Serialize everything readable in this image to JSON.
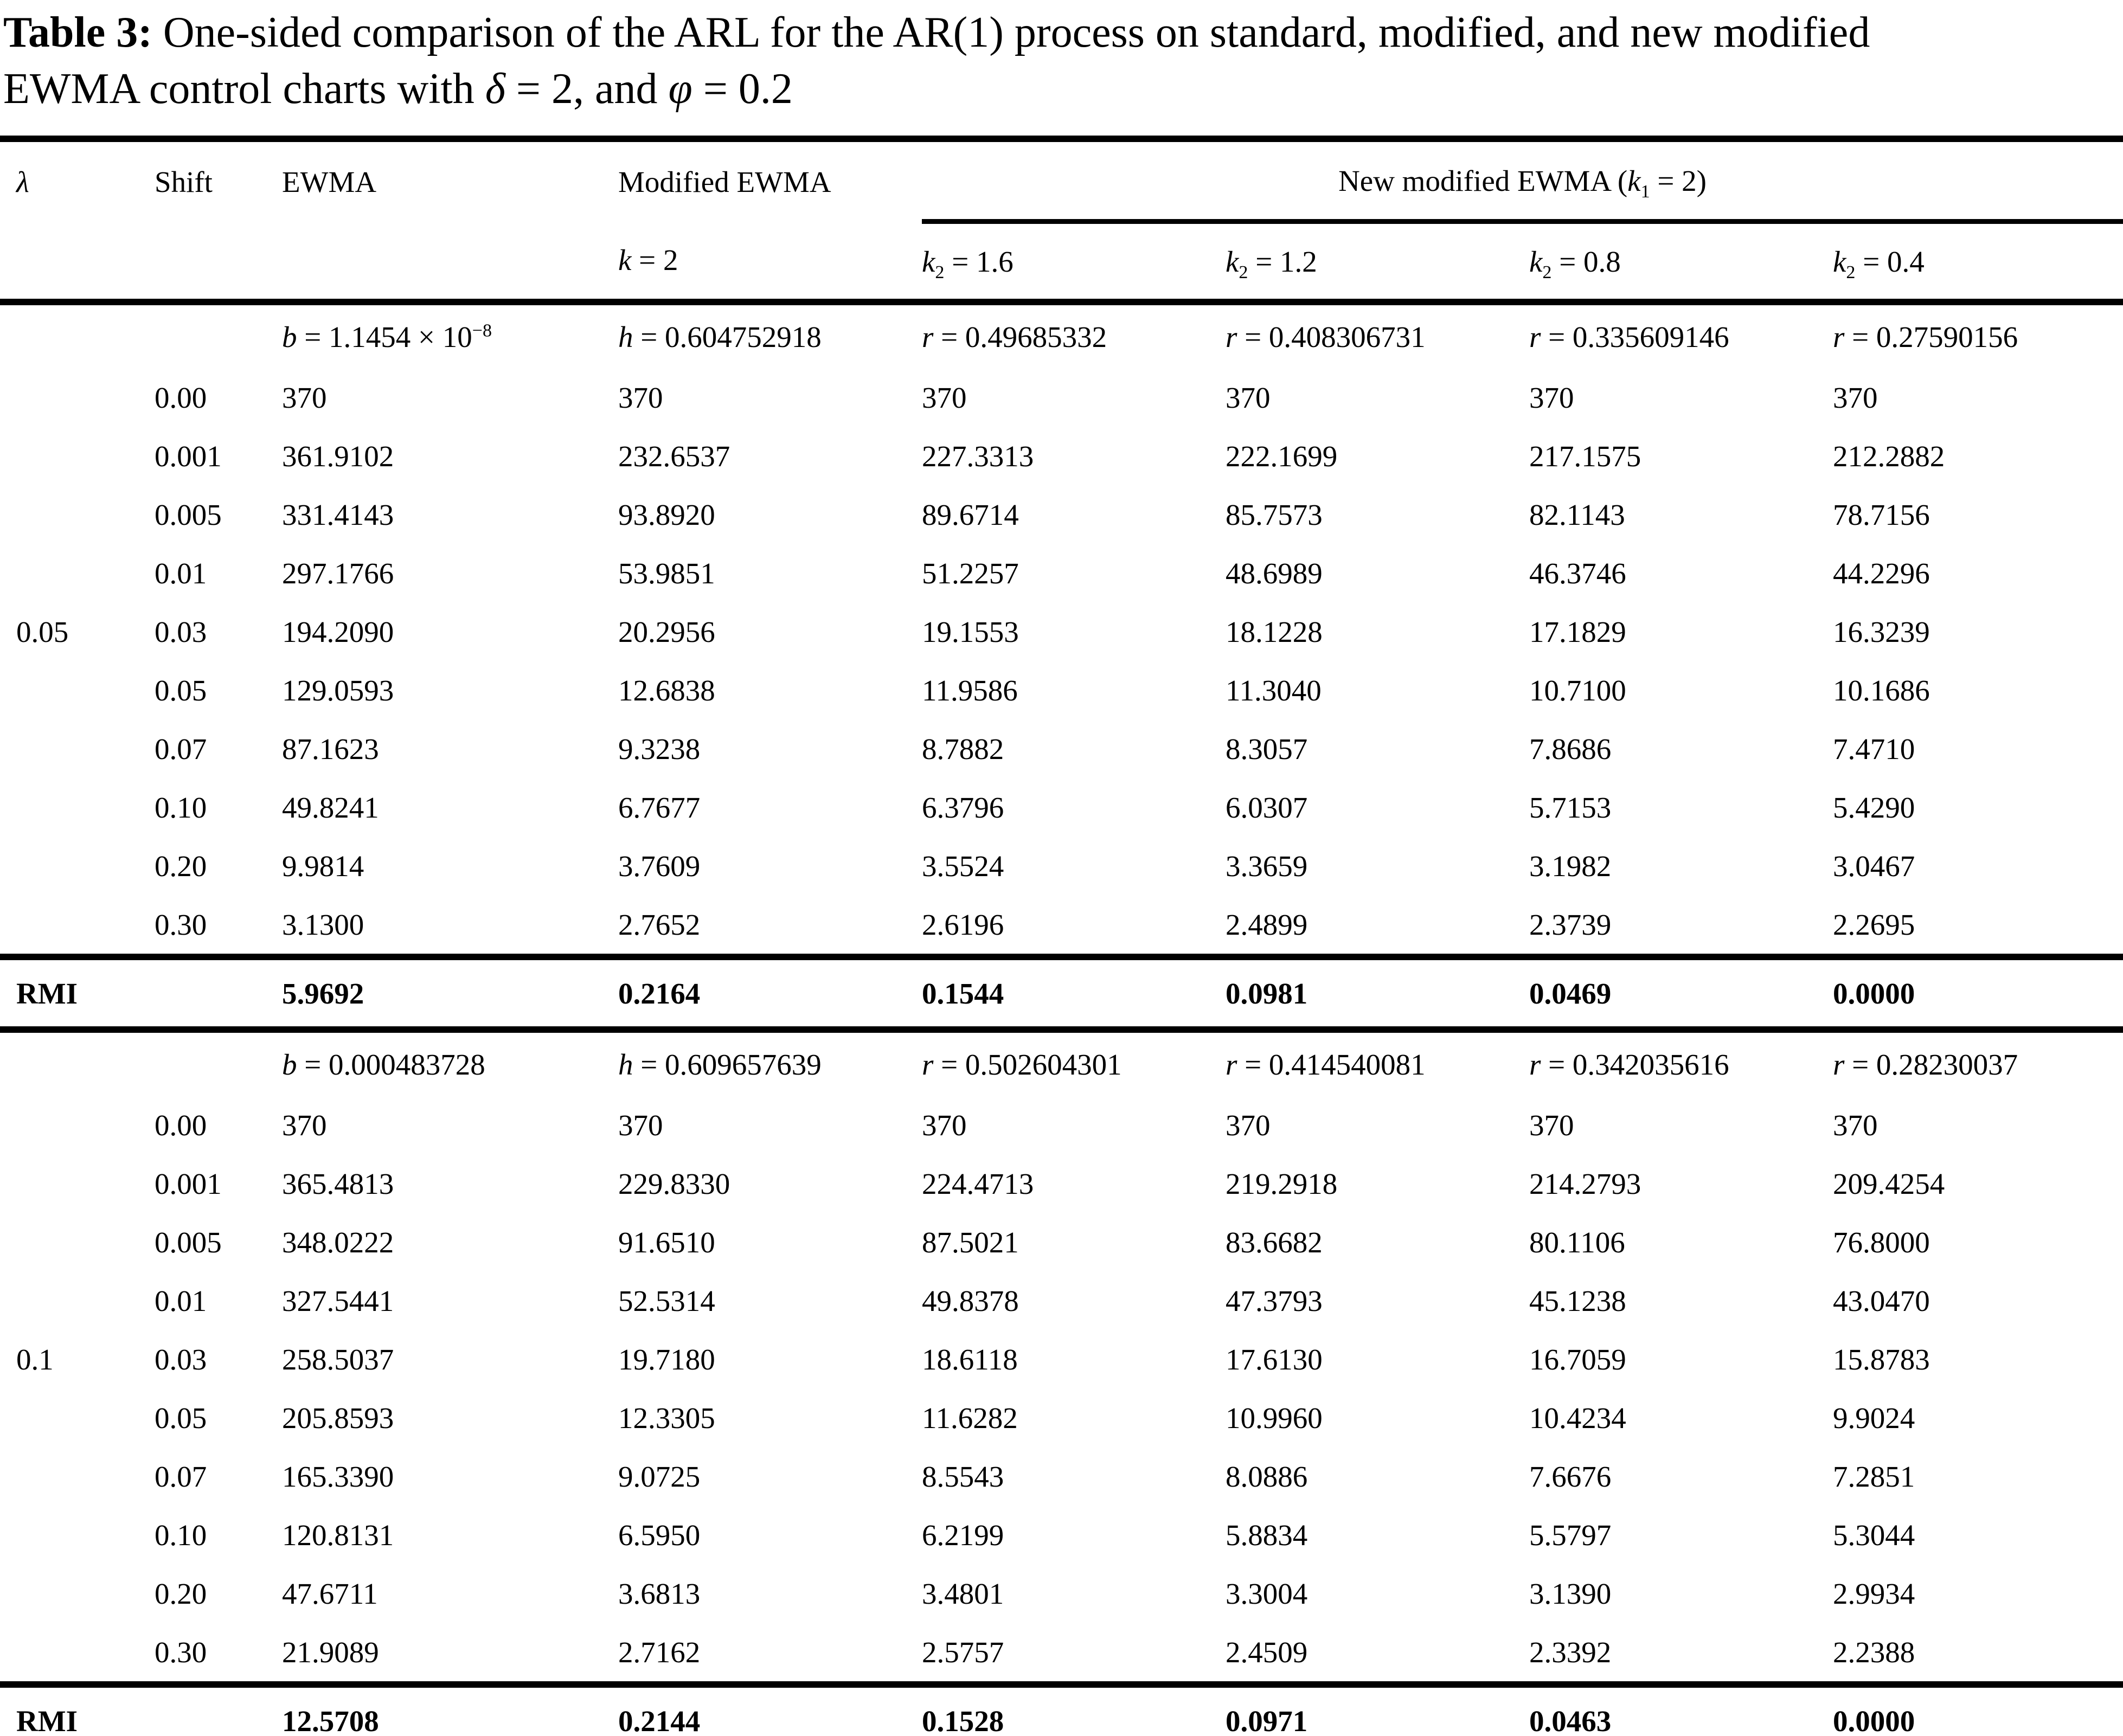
{
  "title": {
    "label": "Table 3:",
    "line1": " One-sided comparison of the ARL for the AR(1) process on standard, modified, and new modified",
    "line2": "EWMA control charts with ",
    "delta": "δ",
    "delta_eq": " = 2, ",
    "and_text": " and ",
    "phi": "φ",
    "phi_eq": " = 0.2"
  },
  "header": {
    "lambda": "λ",
    "shift": "Shift",
    "ewma": "EWMA",
    "modified": "Modified EWMA",
    "group": {
      "prefix": "New modified EWMA (",
      "var": "k",
      "sub": "1",
      "suffix": " = 2)"
    },
    "k_col": {
      "var": "k",
      "eq": " = 2"
    },
    "k2_cols": [
      {
        "var": "k",
        "sub": "2",
        "eq": " = 1.6"
      },
      {
        "var": "k",
        "sub": "2",
        "eq": " = 1.2"
      },
      {
        "var": "k",
        "sub": "2",
        "eq": " = 0.8"
      },
      {
        "var": "k",
        "sub": "2",
        "eq": " = 0.4"
      }
    ]
  },
  "blocks": [
    {
      "lambda": "0.05",
      "params": [
        {
          "var": "b",
          "eq": " = 1.1454 × 10",
          "sup": "−8"
        },
        {
          "var": "h",
          "eq": " = 0.604752918"
        },
        {
          "var": "r",
          "eq": " = 0.49685332"
        },
        {
          "var": "r",
          "eq": " = 0.408306731"
        },
        {
          "var": "r",
          "eq": " = 0.335609146"
        },
        {
          "var": "r",
          "eq": " = 0.27590156"
        }
      ],
      "rows": [
        {
          "shift": "0.00",
          "values": [
            "370",
            "370",
            "370",
            "370",
            "370",
            "370"
          ]
        },
        {
          "shift": "0.001",
          "values": [
            "361.9102",
            "232.6537",
            "227.3313",
            "222.1699",
            "217.1575",
            "212.2882"
          ]
        },
        {
          "shift": "0.005",
          "values": [
            "331.4143",
            "93.8920",
            "89.6714",
            "85.7573",
            "82.1143",
            "78.7156"
          ]
        },
        {
          "shift": "0.01",
          "values": [
            "297.1766",
            "53.9851",
            "51.2257",
            "48.6989",
            "46.3746",
            "44.2296"
          ]
        },
        {
          "shift": "0.03",
          "values": [
            "194.2090",
            "20.2956",
            "19.1553",
            "18.1228",
            "17.1829",
            "16.3239"
          ]
        },
        {
          "shift": "0.05",
          "values": [
            "129.0593",
            "12.6838",
            "11.9586",
            "11.3040",
            "10.7100",
            "10.1686"
          ]
        },
        {
          "shift": "0.07",
          "values": [
            "87.1623",
            "9.3238",
            "8.7882",
            "8.3057",
            "7.8686",
            "7.4710"
          ]
        },
        {
          "shift": "0.10",
          "values": [
            "49.8241",
            "6.7677",
            "6.3796",
            "6.0307",
            "5.7153",
            "5.4290"
          ]
        },
        {
          "shift": "0.20",
          "values": [
            "9.9814",
            "3.7609",
            "3.5524",
            "3.3659",
            "3.1982",
            "3.0467"
          ]
        },
        {
          "shift": "0.30",
          "values": [
            "3.1300",
            "2.7652",
            "2.6196",
            "2.4899",
            "2.3739",
            "2.2695"
          ]
        }
      ],
      "rmi": {
        "label": "RMI",
        "values": [
          "5.9692",
          "0.2164",
          "0.1544",
          "0.0981",
          "0.0469",
          "0.0000"
        ]
      }
    },
    {
      "lambda": "0.1",
      "params": [
        {
          "var": "b",
          "eq": " = 0.000483728"
        },
        {
          "var": "h",
          "eq": " = 0.609657639"
        },
        {
          "var": "r",
          "eq": " = 0.502604301"
        },
        {
          "var": "r",
          "eq": " = 0.414540081"
        },
        {
          "var": "r",
          "eq": " = 0.342035616"
        },
        {
          "var": "r",
          "eq": " = 0.28230037"
        }
      ],
      "rows": [
        {
          "shift": "0.00",
          "values": [
            "370",
            "370",
            "370",
            "370",
            "370",
            "370"
          ]
        },
        {
          "shift": "0.001",
          "values": [
            "365.4813",
            "229.8330",
            "224.4713",
            "219.2918",
            "214.2793",
            "209.4254"
          ]
        },
        {
          "shift": "0.005",
          "values": [
            "348.0222",
            "91.6510",
            "87.5021",
            "83.6682",
            "80.1106",
            "76.8000"
          ]
        },
        {
          "shift": "0.01",
          "values": [
            "327.5441",
            "52.5314",
            "49.8378",
            "47.3793",
            "45.1238",
            "43.0470"
          ]
        },
        {
          "shift": "0.03",
          "values": [
            "258.5037",
            "19.7180",
            "18.6118",
            "17.6130",
            "16.7059",
            "15.8783"
          ]
        },
        {
          "shift": "0.05",
          "values": [
            "205.8593",
            "12.3305",
            "11.6282",
            "10.9960",
            "10.4234",
            "9.9024"
          ]
        },
        {
          "shift": "0.07",
          "values": [
            "165.3390",
            "9.0725",
            "8.5543",
            "8.0886",
            "7.6676",
            "7.2851"
          ]
        },
        {
          "shift": "0.10",
          "values": [
            "120.8131",
            "6.5950",
            "6.2199",
            "5.8834",
            "5.5797",
            "5.3044"
          ]
        },
        {
          "shift": "0.20",
          "values": [
            "47.6711",
            "3.6813",
            "3.4801",
            "3.3004",
            "3.1390",
            "2.9934"
          ]
        },
        {
          "shift": "0.30",
          "values": [
            "21.9089",
            "2.7162",
            "2.5757",
            "2.4509",
            "2.3392",
            "2.2388"
          ]
        }
      ],
      "rmi": {
        "label": "RMI",
        "values": [
          "12.5708",
          "0.2144",
          "0.1528",
          "0.0971",
          "0.0463",
          "0.0000"
        ]
      }
    }
  ]
}
